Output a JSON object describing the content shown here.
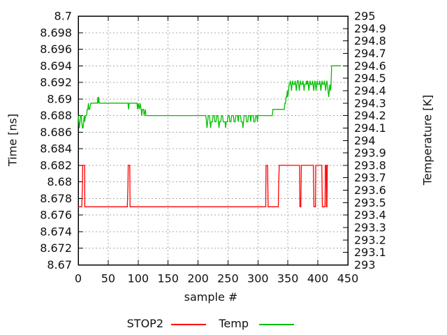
{
  "chart_data": {
    "type": "line",
    "xlabel": "sample #",
    "ylabel": "Time [ns]",
    "y2label": "Temperature [K]",
    "xlim": [
      0,
      450
    ],
    "ylim": [
      8.67,
      8.7
    ],
    "y2lim": [
      293,
      295
    ],
    "grid": true,
    "legend_position": "below-plot",
    "x_ticks": [
      0,
      50,
      100,
      150,
      200,
      250,
      300,
      350,
      400,
      450
    ],
    "y_ticks": [
      {
        "v": 8.7,
        "label": "8.7"
      },
      {
        "v": 8.698,
        "label": "8.698"
      },
      {
        "v": 8.696,
        "label": "8.696"
      },
      {
        "v": 8.694,
        "label": "8.694"
      },
      {
        "v": 8.692,
        "label": "8.692"
      },
      {
        "v": 8.69,
        "label": "8.69"
      },
      {
        "v": 8.688,
        "label": "8.688"
      },
      {
        "v": 8.686,
        "label": "8.686"
      },
      {
        "v": 8.684,
        "label": "8.684"
      },
      {
        "v": 8.682,
        "label": "8.682"
      },
      {
        "v": 8.68,
        "label": "8.68"
      },
      {
        "v": 8.678,
        "label": "8.678"
      },
      {
        "v": 8.676,
        "label": "8.676"
      },
      {
        "v": 8.674,
        "label": "8.674"
      },
      {
        "v": 8.672,
        "label": "8.672"
      },
      {
        "v": 8.67,
        "label": "8.67"
      }
    ],
    "y2_ticks": [
      {
        "v": 295,
        "label": "295"
      },
      {
        "v": 294.9,
        "label": "294.9"
      },
      {
        "v": 294.8,
        "label": "294.8"
      },
      {
        "v": 294.7,
        "label": "294.7"
      },
      {
        "v": 294.6,
        "label": "294.6"
      },
      {
        "v": 294.5,
        "label": "294.5"
      },
      {
        "v": 294.4,
        "label": "294.4"
      },
      {
        "v": 294.3,
        "label": "294.3"
      },
      {
        "v": 294.2,
        "label": "294.2"
      },
      {
        "v": 294.1,
        "label": "294.1"
      },
      {
        "v": 294,
        "label": "294"
      },
      {
        "v": 293.9,
        "label": "293.9"
      },
      {
        "v": 293.8,
        "label": "293.8"
      },
      {
        "v": 293.7,
        "label": "293.7"
      },
      {
        "v": 293.6,
        "label": "293.6"
      },
      {
        "v": 293.5,
        "label": "293.5"
      },
      {
        "v": 293.4,
        "label": "293.4"
      },
      {
        "v": 293.3,
        "label": "293.3"
      },
      {
        "v": 293.2,
        "label": "293.2"
      },
      {
        "v": 293.1,
        "label": "293.1"
      },
      {
        "v": 293,
        "label": "293"
      }
    ],
    "style": {
      "border_color": "#000000",
      "grid_color": "#a8a8a8",
      "tick_color": "#000000",
      "text_color": "#111111",
      "background": "#ffffff"
    },
    "series": [
      {
        "name": "STOP2",
        "color": "#ff0000",
        "axis": "y1",
        "points": [
          [
            0,
            8.677
          ],
          [
            6,
            8.677
          ],
          [
            7,
            8.6795
          ],
          [
            7.5,
            8.682
          ],
          [
            10.7,
            8.682
          ],
          [
            11,
            8.677
          ],
          [
            82,
            8.677
          ],
          [
            83,
            8.6795
          ],
          [
            83.5,
            8.682
          ],
          [
            86,
            8.682
          ],
          [
            86.5,
            8.677
          ],
          [
            313,
            8.677
          ],
          [
            313.5,
            8.682
          ],
          [
            316,
            8.682
          ],
          [
            316.5,
            8.6795
          ],
          [
            317,
            8.677
          ],
          [
            334,
            8.677
          ],
          [
            334.5,
            8.6795
          ],
          [
            335.5,
            8.682
          ],
          [
            369.5,
            8.682
          ],
          [
            370,
            8.677
          ],
          [
            371.5,
            8.677
          ],
          [
            372,
            8.6795
          ],
          [
            372.5,
            8.682
          ],
          [
            392.5,
            8.682
          ],
          [
            393,
            8.6795
          ],
          [
            393.5,
            8.677
          ],
          [
            396,
            8.677
          ],
          [
            396.5,
            8.682
          ],
          [
            406.5,
            8.682
          ],
          [
            407,
            8.6795
          ],
          [
            407.5,
            8.677
          ],
          [
            412,
            8.677
          ],
          [
            412.5,
            8.682
          ],
          [
            414,
            8.682
          ],
          [
            414.5,
            8.677
          ],
          [
            415.2,
            8.677
          ],
          [
            415.7,
            8.682
          ],
          [
            417.5,
            8.682
          ]
        ]
      },
      {
        "name": "Temp",
        "color": "#00c000",
        "axis": "y2",
        "points": [
          [
            0,
            294.2
          ],
          [
            1,
            294.15
          ],
          [
            2,
            294.1
          ],
          [
            3,
            294.15
          ],
          [
            4,
            294.2
          ],
          [
            5,
            294.2
          ],
          [
            6,
            294.15
          ],
          [
            7,
            294.1
          ],
          [
            8,
            294.1
          ],
          [
            9,
            294.15
          ],
          [
            10,
            294.2
          ],
          [
            11,
            294.15
          ],
          [
            12,
            294.2
          ],
          [
            14,
            294.2
          ],
          [
            15,
            294.25
          ],
          [
            16,
            294.25
          ],
          [
            17,
            294.3
          ],
          [
            18,
            294.25
          ],
          [
            19,
            294.25
          ],
          [
            21,
            294.3
          ],
          [
            32,
            294.3
          ],
          [
            33,
            294.35
          ],
          [
            33.7,
            294.3
          ],
          [
            34.3,
            294.35
          ],
          [
            35,
            294.3
          ],
          [
            83,
            294.3
          ],
          [
            84,
            294.25
          ],
          [
            85,
            294.3
          ],
          [
            98,
            294.3
          ],
          [
            99,
            294.25
          ],
          [
            100,
            294.3
          ],
          [
            102,
            294.25
          ],
          [
            103,
            294.3
          ],
          [
            105,
            294.25
          ],
          [
            106,
            294.2
          ],
          [
            107,
            294.25
          ],
          [
            109,
            294.25
          ],
          [
            110,
            294.2
          ],
          [
            112,
            294.25
          ],
          [
            113,
            294.2
          ],
          [
            117,
            294.2
          ],
          [
            213,
            294.2
          ],
          [
            214,
            294.15
          ],
          [
            215,
            294.1
          ],
          [
            216,
            294.15
          ],
          [
            217,
            294.2
          ],
          [
            219,
            294.2
          ],
          [
            220,
            294.15
          ],
          [
            221,
            294.1
          ],
          [
            222,
            294.15
          ],
          [
            224,
            294.15
          ],
          [
            225,
            294.2
          ],
          [
            227,
            294.2
          ],
          [
            228,
            294.15
          ],
          [
            230,
            294.15
          ],
          [
            231,
            294.2
          ],
          [
            233,
            294.2
          ],
          [
            234,
            294.15
          ],
          [
            235,
            294.1
          ],
          [
            236,
            294.15
          ],
          [
            238,
            294.15
          ],
          [
            239,
            294.2
          ],
          [
            241,
            294.2
          ],
          [
            242,
            294.15
          ],
          [
            245,
            294.15
          ],
          [
            246,
            294.1
          ],
          [
            247,
            294.15
          ],
          [
            249,
            294.15
          ],
          [
            250,
            294.2
          ],
          [
            252,
            294.2
          ],
          [
            253,
            294.15
          ],
          [
            255,
            294.15
          ],
          [
            256,
            294.2
          ],
          [
            259,
            294.2
          ],
          [
            260,
            294.15
          ],
          [
            262,
            294.15
          ],
          [
            263,
            294.2
          ],
          [
            266,
            294.2
          ],
          [
            267,
            294.15
          ],
          [
            268,
            294.2
          ],
          [
            271,
            294.2
          ],
          [
            272,
            294.15
          ],
          [
            274,
            294.15
          ],
          [
            275,
            294.1
          ],
          [
            276,
            294.15
          ],
          [
            277,
            294.2
          ],
          [
            280,
            294.2
          ],
          [
            281,
            294.15
          ],
          [
            283,
            294.15
          ],
          [
            284,
            294.2
          ],
          [
            287,
            294.2
          ],
          [
            288,
            294.15
          ],
          [
            289,
            294.2
          ],
          [
            292,
            294.2
          ],
          [
            293,
            294.15
          ],
          [
            295,
            294.15
          ],
          [
            296,
            294.2
          ],
          [
            298,
            294.2
          ],
          [
            299,
            294.15
          ],
          [
            300,
            294.2
          ],
          [
            301,
            294.2
          ],
          [
            324,
            294.2
          ],
          [
            325,
            294.25
          ],
          [
            344,
            294.25
          ],
          [
            345,
            294.3
          ],
          [
            346,
            294.3
          ],
          [
            347,
            294.35
          ],
          [
            348,
            294.35
          ],
          [
            349,
            294.4
          ],
          [
            350,
            294.35
          ],
          [
            351,
            294.4
          ],
          [
            352,
            294.45
          ],
          [
            353,
            294.45
          ],
          [
            354,
            294.48
          ],
          [
            355,
            294.45
          ],
          [
            356,
            294.4
          ],
          [
            357,
            294.45
          ],
          [
            358,
            294.48
          ],
          [
            359,
            294.45
          ],
          [
            361,
            294.45
          ],
          [
            362,
            294.48
          ],
          [
            363,
            294.45
          ],
          [
            364,
            294.4
          ],
          [
            365,
            294.45
          ],
          [
            366,
            294.48
          ],
          [
            367,
            294.48
          ],
          [
            368,
            294.45
          ],
          [
            369,
            294.4
          ],
          [
            370,
            294.45
          ],
          [
            371,
            294.48
          ],
          [
            372,
            294.45
          ],
          [
            374,
            294.45
          ],
          [
            375,
            294.48
          ],
          [
            376,
            294.45
          ],
          [
            377,
            294.4
          ],
          [
            378,
            294.45
          ],
          [
            380,
            294.45
          ],
          [
            381,
            294.48
          ],
          [
            382,
            294.45
          ],
          [
            383,
            294.48
          ],
          [
            384,
            294.45
          ],
          [
            385,
            294.4
          ],
          [
            386,
            294.45
          ],
          [
            387,
            294.48
          ],
          [
            388,
            294.45
          ],
          [
            390,
            294.45
          ],
          [
            391,
            294.48
          ],
          [
            392,
            294.45
          ],
          [
            393,
            294.4
          ],
          [
            394,
            294.45
          ],
          [
            395,
            294.48
          ],
          [
            396,
            294.45
          ],
          [
            397,
            294.4
          ],
          [
            398,
            294.45
          ],
          [
            399,
            294.48
          ],
          [
            400,
            294.45
          ],
          [
            402,
            294.45
          ],
          [
            403,
            294.48
          ],
          [
            404,
            294.45
          ],
          [
            405,
            294.4
          ],
          [
            406,
            294.45
          ],
          [
            407,
            294.48
          ],
          [
            408,
            294.45
          ],
          [
            410,
            294.45
          ],
          [
            411,
            294.48
          ],
          [
            412,
            294.45
          ],
          [
            413,
            294.4
          ],
          [
            414,
            294.45
          ],
          [
            415,
            294.48
          ],
          [
            416,
            294.45
          ],
          [
            417,
            294.4
          ],
          [
            418,
            294.35
          ],
          [
            419,
            294.4
          ],
          [
            420,
            294.45
          ],
          [
            421,
            294.4
          ],
          [
            422,
            294.45
          ],
          [
            423,
            294.6
          ],
          [
            438,
            294.6
          ]
        ]
      }
    ]
  },
  "legend": {
    "items": [
      {
        "label": "STOP2",
        "color": "#ff0000"
      },
      {
        "label": "Temp",
        "color": "#00c000"
      }
    ]
  }
}
